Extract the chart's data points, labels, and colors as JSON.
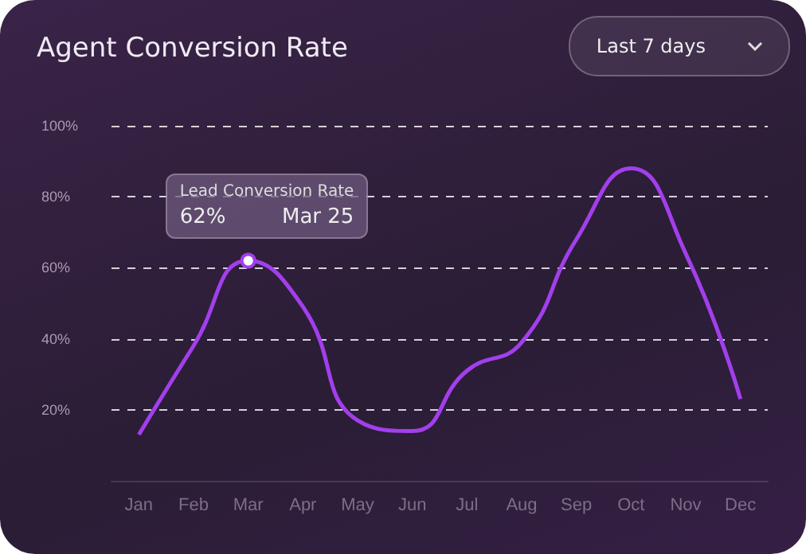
{
  "chart_data": {
    "type": "line",
    "title": "Agent Conversion Rate",
    "categories": [
      "Jan",
      "Feb",
      "Mar",
      "Apr",
      "May",
      "Jun",
      "Jul",
      "Aug",
      "Sep",
      "Oct",
      "Nov",
      "Dec"
    ],
    "series": [
      {
        "color": "#a23fec",
        "values": [
          13,
          38,
          62,
          49,
          17,
          14,
          31,
          39,
          68,
          88,
          64,
          23
        ]
      }
    ],
    "ylim": [
      0,
      100
    ],
    "yticks": [
      {
        "value": 20,
        "label": "20%"
      },
      {
        "value": 40,
        "label": "40%"
      },
      {
        "value": 60,
        "label": "60%"
      },
      {
        "value": 80,
        "label": "80%"
      },
      {
        "value": 100,
        "label": "100%"
      }
    ],
    "grid": "y",
    "line_style": "solid",
    "marker": "none",
    "annotations": [
      "Last 7 days",
      "Lead Conversion Rate",
      {
        "text": "62%",
        "x": "Mar",
        "y": 62
      },
      {
        "text": "Mar 25",
        "x": "Mar",
        "y": 62
      }
    ]
  }
}
